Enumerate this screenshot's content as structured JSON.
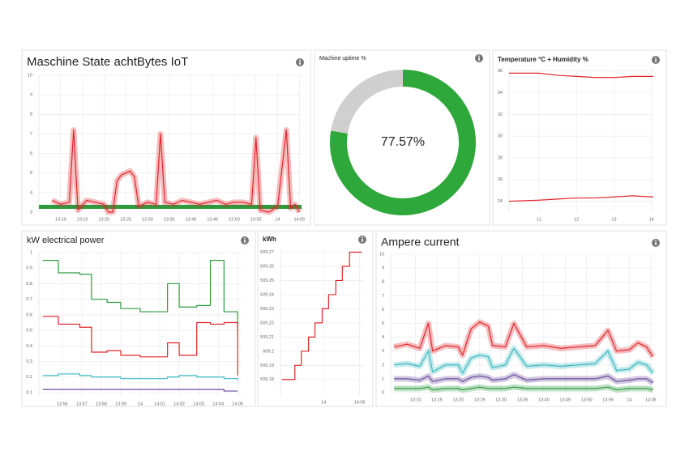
{
  "chart_data": [
    {
      "type": "line",
      "title": "Maschine State achtBytes IoT",
      "band": true,
      "grid": true,
      "xlim": [
        5,
        65.5
      ],
      "ylim": [
        3,
        10
      ],
      "yticks": [
        3,
        4,
        5,
        6,
        7,
        8,
        9,
        10
      ],
      "xticks": [
        {
          "value": 10,
          "label": "13:10"
        },
        {
          "value": 15,
          "label": "13:15"
        },
        {
          "value": 20,
          "label": "13:20"
        },
        {
          "value": 25,
          "label": "13:25"
        },
        {
          "value": 30,
          "label": "13:30"
        },
        {
          "value": 35,
          "label": "13:35"
        },
        {
          "value": 40,
          "label": "13:40"
        },
        {
          "value": 45,
          "label": "13:45"
        },
        {
          "value": 50,
          "label": "13:50"
        },
        {
          "value": 55,
          "label": "13:55"
        },
        {
          "value": 60,
          "label": "14"
        },
        {
          "value": 65,
          "label": "14:05"
        }
      ],
      "x": [
        8,
        10,
        12,
        13,
        14,
        16,
        18,
        20,
        21,
        22,
        23,
        24,
        26,
        27,
        28,
        30,
        32,
        33,
        34,
        36,
        38,
        40,
        42,
        44,
        46,
        48,
        50,
        52,
        54,
        55,
        56,
        58,
        60,
        62,
        63,
        64,
        65
      ],
      "series": [
        {
          "color": "#e0262b",
          "values": [
            3.6,
            3.4,
            3.5,
            7.2,
            3.1,
            3.6,
            3.5,
            3.4,
            3.0,
            3.0,
            4.6,
            4.9,
            5.1,
            4.8,
            3.3,
            3.5,
            3.4,
            7.0,
            3.5,
            3.4,
            3.6,
            3.5,
            3.4,
            3.5,
            3.6,
            3.4,
            3.5,
            3.5,
            3.4,
            6.8,
            3.1,
            3.0,
            3.3,
            7.2,
            3.2,
            3.4,
            3.0
          ]
        }
      ]
    },
    {
      "type": "pie",
      "title": "Machine uptime %",
      "values": [
        77.57,
        22.43
      ],
      "value_labels": [
        "77.57%",
        null
      ],
      "colors": [
        "#2ea83a",
        "#cfcfcf"
      ]
    },
    {
      "type": "line",
      "title": "Temperature °C + Humidity %",
      "grid": true,
      "xlim": [
        10.2,
        14.05
      ],
      "ylim": [
        23,
        36.2
      ],
      "yticks": [
        24,
        26,
        28,
        30,
        32,
        34,
        36
      ],
      "xticks": [
        11,
        12,
        13,
        14
      ],
      "x": [
        10.2,
        11,
        11.5,
        12,
        12.5,
        13,
        13.5,
        14,
        14.05
      ],
      "series": [
        {
          "color": "#e0262b",
          "values": [
            35.8,
            35.8,
            35.6,
            35.5,
            35.4,
            35.4,
            35.5,
            35.5,
            35.5
          ]
        },
        {
          "color": "#e0262b",
          "values": [
            24.0,
            24.1,
            24.2,
            24.3,
            24.3,
            24.4,
            24.5,
            24.4,
            24.4
          ]
        }
      ]
    },
    {
      "type": "line",
      "title": "kW electrical power",
      "step": true,
      "grid": true,
      "xlim": [
        54.8,
        65.2
      ],
      "ylim": [
        0.074,
        1
      ],
      "yticks": [
        0.1,
        0.2,
        0.3,
        0.4,
        0.5,
        0.6,
        0.7,
        0.8,
        0.9,
        1
      ],
      "xticks": [
        {
          "value": 56,
          "label": "13:56"
        },
        {
          "value": 57,
          "label": "13:57"
        },
        {
          "value": 58,
          "label": "13:58"
        },
        {
          "value": 59,
          "label": "13:59"
        },
        {
          "value": 60,
          "label": "14"
        },
        {
          "value": 61,
          "label": "14:01"
        },
        {
          "value": 62,
          "label": "14:02"
        },
        {
          "value": 63,
          "label": "14:03"
        },
        {
          "value": 64,
          "label": "14:04"
        },
        {
          "value": 65,
          "label": "14:05"
        }
      ],
      "x": [
        55,
        55.8,
        56.9,
        57.5,
        58.3,
        59,
        60,
        61.4,
        62,
        62.9,
        63.6,
        64.3,
        65
      ],
      "series": [
        {
          "color": "#2e9a3e",
          "values": [
            0.95,
            0.87,
            0.86,
            0.7,
            0.68,
            0.64,
            0.62,
            0.8,
            0.65,
            0.66,
            0.95,
            0.62,
            0.5
          ]
        },
        {
          "color": "#e0262b",
          "values": [
            0.59,
            0.54,
            0.52,
            0.36,
            0.37,
            0.34,
            0.33,
            0.42,
            0.34,
            0.55,
            0.54,
            0.55,
            0.21
          ]
        },
        {
          "color": "#3bb8c0",
          "values": [
            0.21,
            0.22,
            0.21,
            0.2,
            0.2,
            0.19,
            0.19,
            0.2,
            0.21,
            0.2,
            0.2,
            0.19,
            0.18
          ]
        },
        {
          "color": "#6a4c9c",
          "values": [
            0.12,
            0.12,
            0.12,
            0.12,
            0.12,
            0.12,
            0.12,
            0.12,
            0.12,
            0.12,
            0.12,
            0.11,
            0.11
          ]
        }
      ]
    },
    {
      "type": "line",
      "title": "kWh",
      "step": true,
      "grid": true,
      "xlim": [
        54,
        65.5
      ],
      "ylim": [
        509.169,
        509.272
      ],
      "yticks": [
        509.18,
        509.19,
        509.2,
        509.21,
        509.22,
        509.23,
        509.24,
        509.25,
        509.26,
        509.27
      ],
      "xticks": [
        {
          "value": 60,
          "label": "14"
        },
        {
          "value": 65,
          "label": "14:05"
        }
      ],
      "x": [
        54.2,
        56,
        56.9,
        57.9,
        58.8,
        59.8,
        60.7,
        61.7,
        62.6,
        63.6,
        65.3
      ],
      "series": [
        {
          "color": "#e0262b",
          "values": [
            509.18,
            509.19,
            509.2,
            509.21,
            509.22,
            509.23,
            509.24,
            509.25,
            509.26,
            509.27,
            509.27
          ]
        }
      ]
    },
    {
      "type": "line",
      "title": "Ampere current",
      "band": true,
      "grid": true,
      "xlim": [
        4.2,
        65.6
      ],
      "ylim": [
        0,
        10
      ],
      "yticks": [
        0,
        1,
        2,
        3,
        4,
        5,
        6,
        7,
        8,
        9,
        10
      ],
      "xticks": [
        {
          "value": 10,
          "label": "13:10"
        },
        {
          "value": 15,
          "label": "13:15"
        },
        {
          "value": 20,
          "label": "13:20"
        },
        {
          "value": 25,
          "label": "13:25"
        },
        {
          "value": 30,
          "label": "13:30"
        },
        {
          "value": 35,
          "label": "13:35"
        },
        {
          "value": 40,
          "label": "13:40"
        },
        {
          "value": 45,
          "label": "13:45"
        },
        {
          "value": 50,
          "label": "13:50"
        },
        {
          "value": 55,
          "label": "13:55"
        },
        {
          "value": 60,
          "label": "14"
        },
        {
          "value": 65,
          "label": "14:05"
        }
      ],
      "x": [
        5,
        8,
        11,
        13,
        14,
        17,
        20,
        21,
        23,
        25,
        27,
        28,
        31,
        33,
        36,
        40,
        44,
        48,
        52,
        55,
        57,
        60,
        62,
        64,
        65.5
      ],
      "series": [
        {
          "color": "#e0262b",
          "values": [
            3.3,
            3.5,
            3.2,
            5.0,
            3.0,
            3.4,
            3.3,
            2.7,
            4.6,
            5.1,
            4.8,
            3.4,
            3.3,
            5.0,
            3.3,
            3.4,
            3.2,
            3.3,
            3.4,
            4.5,
            3.0,
            3.1,
            3.6,
            3.3,
            2.6
          ]
        },
        {
          "color": "#3bb8c0",
          "values": [
            2.0,
            2.1,
            1.9,
            3.0,
            1.5,
            2.0,
            2.0,
            1.4,
            2.5,
            2.7,
            2.6,
            1.8,
            2.0,
            3.2,
            1.9,
            2.0,
            1.9,
            2.0,
            2.1,
            3.0,
            1.6,
            1.7,
            2.2,
            2.0,
            1.4
          ]
        },
        {
          "color": "#6a4c9c",
          "values": [
            1.0,
            1.0,
            0.9,
            1.2,
            0.8,
            1.0,
            1.0,
            0.8,
            1.1,
            1.2,
            1.1,
            0.9,
            1.0,
            1.3,
            0.9,
            1.0,
            1.0,
            1.0,
            1.0,
            1.2,
            0.8,
            0.9,
            1.0,
            1.0,
            0.7
          ]
        },
        {
          "color": "#2e9a3e",
          "values": [
            0.3,
            0.3,
            0.3,
            0.4,
            0.2,
            0.3,
            0.3,
            0.2,
            0.3,
            0.4,
            0.3,
            0.3,
            0.3,
            0.4,
            0.3,
            0.3,
            0.3,
            0.3,
            0.3,
            0.4,
            0.2,
            0.3,
            0.3,
            0.3,
            0.2
          ]
        }
      ]
    }
  ]
}
